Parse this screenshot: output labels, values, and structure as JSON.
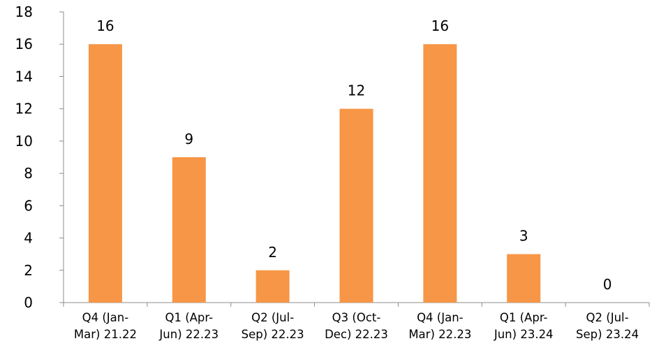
{
  "chart_data": {
    "type": "bar",
    "categories": [
      [
        "Q4 (Jan-",
        "Mar) 21.22"
      ],
      [
        "Q1 (Apr-",
        "Jun) 22.23"
      ],
      [
        "Q2 (Jul-",
        "Sep) 22.23"
      ],
      [
        "Q3 (Oct-",
        "Dec) 22.23"
      ],
      [
        "Q4 (Jan-",
        "Mar) 22.23"
      ],
      [
        "Q1 (Apr-",
        "Jun) 23.24"
      ],
      [
        "Q2 (Jul-",
        "Sep) 23.24"
      ]
    ],
    "values": [
      16,
      9,
      2,
      12,
      16,
      3,
      0
    ],
    "ylim": [
      0,
      18
    ],
    "yticks": [
      0,
      2,
      4,
      6,
      8,
      10,
      12,
      14,
      16,
      18
    ],
    "grid": false,
    "legend": "none",
    "bar_color": "#F79646",
    "axis_color": "#8C8C8C"
  }
}
